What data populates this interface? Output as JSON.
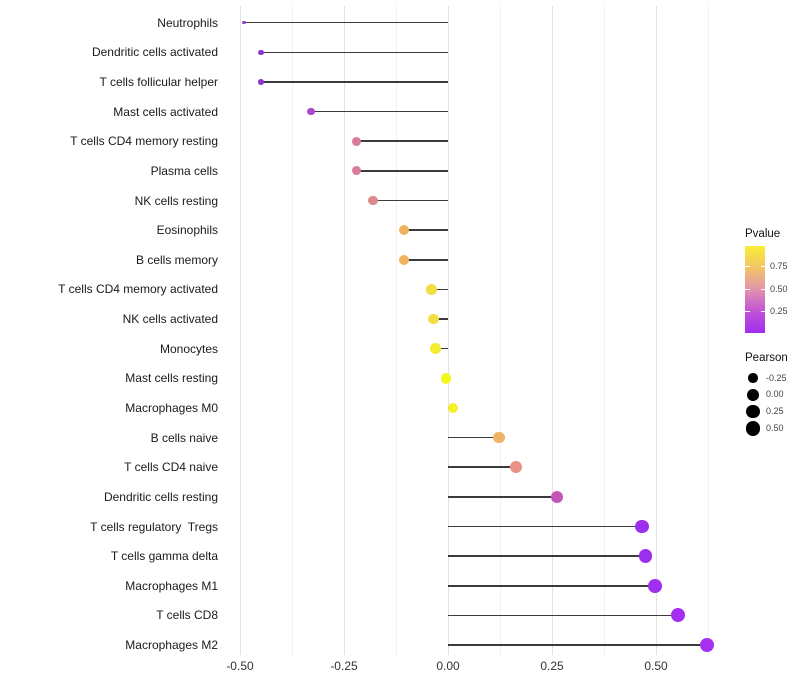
{
  "chart_data": {
    "type": "lollipop",
    "title": "",
    "xlabel": "",
    "ylabel": "",
    "grid": true,
    "legend_position": "right",
    "xlim": [
      -0.545,
      0.68
    ],
    "x_tick_labels": [
      "-0.50",
      "-0.25",
      "0.00",
      "0.25",
      "0.50"
    ],
    "x_tick_values": [
      -0.5,
      -0.25,
      0.0,
      0.25,
      0.5
    ],
    "points": [
      {
        "label": "Neutrophils",
        "pearson": -0.49,
        "pvalue": 0.12,
        "color": "#9b3dc8"
      },
      {
        "label": "Dendritic cells activated",
        "pearson": -0.45,
        "pvalue": 0.08,
        "color": "#9134d2"
      },
      {
        "label": "T cells follicular helper",
        "pearson": -0.45,
        "pvalue": 0.08,
        "color": "#9134d2"
      },
      {
        "label": "Mast cells activated",
        "pearson": -0.33,
        "pvalue": 0.18,
        "color": "#ac46cc"
      },
      {
        "label": "T cells CD4 memory resting",
        "pearson": -0.22,
        "pvalue": 0.44,
        "color": "#d77c9e"
      },
      {
        "label": "Plasma cells",
        "pearson": -0.22,
        "pvalue": 0.44,
        "color": "#d77c9e"
      },
      {
        "label": "NK cells resting",
        "pearson": -0.18,
        "pvalue": 0.5,
        "color": "#dc8a8b"
      },
      {
        "label": "Eosinophils",
        "pearson": -0.105,
        "pvalue": 0.68,
        "color": "#efb25f"
      },
      {
        "label": "B cells memory",
        "pearson": -0.105,
        "pvalue": 0.68,
        "color": "#efb25f"
      },
      {
        "label": "T cells CD4 memory activated",
        "pearson": -0.04,
        "pvalue": 0.84,
        "color": "#f3de41"
      },
      {
        "label": "NK cells activated",
        "pearson": -0.035,
        "pvalue": 0.84,
        "color": "#f3de41"
      },
      {
        "label": "Monocytes",
        "pearson": -0.03,
        "pvalue": 0.9,
        "color": "#f5eb31"
      },
      {
        "label": "Mast cells resting",
        "pearson": -0.005,
        "pvalue": 0.98,
        "color": "#f6f61d"
      },
      {
        "label": "Macrophages M0",
        "pearson": 0.012,
        "pvalue": 0.93,
        "color": "#f5f028"
      },
      {
        "label": "B cells naive",
        "pearson": 0.123,
        "pvalue": 0.68,
        "color": "#efb269"
      },
      {
        "label": "T cells CD4 naive",
        "pearson": 0.164,
        "pvalue": 0.52,
        "color": "#e79384"
      },
      {
        "label": "Dendritic cells resting",
        "pearson": 0.262,
        "pvalue": 0.3,
        "color": "#c455b8"
      },
      {
        "label": "T cells regulatory  Tregs",
        "pearson": 0.467,
        "pvalue": 0.03,
        "color": "#9c2fec"
      },
      {
        "label": "T cells gamma delta",
        "pearson": 0.475,
        "pvalue": 0.03,
        "color": "#9c2fec"
      },
      {
        "label": "Macrophages M1",
        "pearson": 0.498,
        "pvalue": 0.02,
        "color": "#a02ff0"
      },
      {
        "label": "T cells CD8",
        "pearson": 0.552,
        "pvalue": 0.02,
        "color": "#a42ff2"
      },
      {
        "label": "Macrophages M2",
        "pearson": 0.623,
        "pvalue": 0.01,
        "color": "#a62ff2"
      }
    ],
    "legend_pvalue": {
      "title": "Pvalue",
      "tick_labels": [
        "0.75",
        "0.50",
        "0.25"
      ],
      "tick_values": [
        0.75,
        0.5,
        0.25
      ],
      "range": [
        0.01,
        0.98
      ],
      "gradient_top_to_bottom": [
        "#f9ee35",
        "#f2c567",
        "#e193ae",
        "#c253d6",
        "#a02df0"
      ]
    },
    "legend_pearson": {
      "title": "Pearson",
      "tick_labels": [
        "-0.25",
        "0.00",
        "0.25",
        "0.50"
      ],
      "tick_values": [
        -0.25,
        0.0,
        0.25,
        0.5
      ],
      "dot_color": "#000000"
    }
  }
}
